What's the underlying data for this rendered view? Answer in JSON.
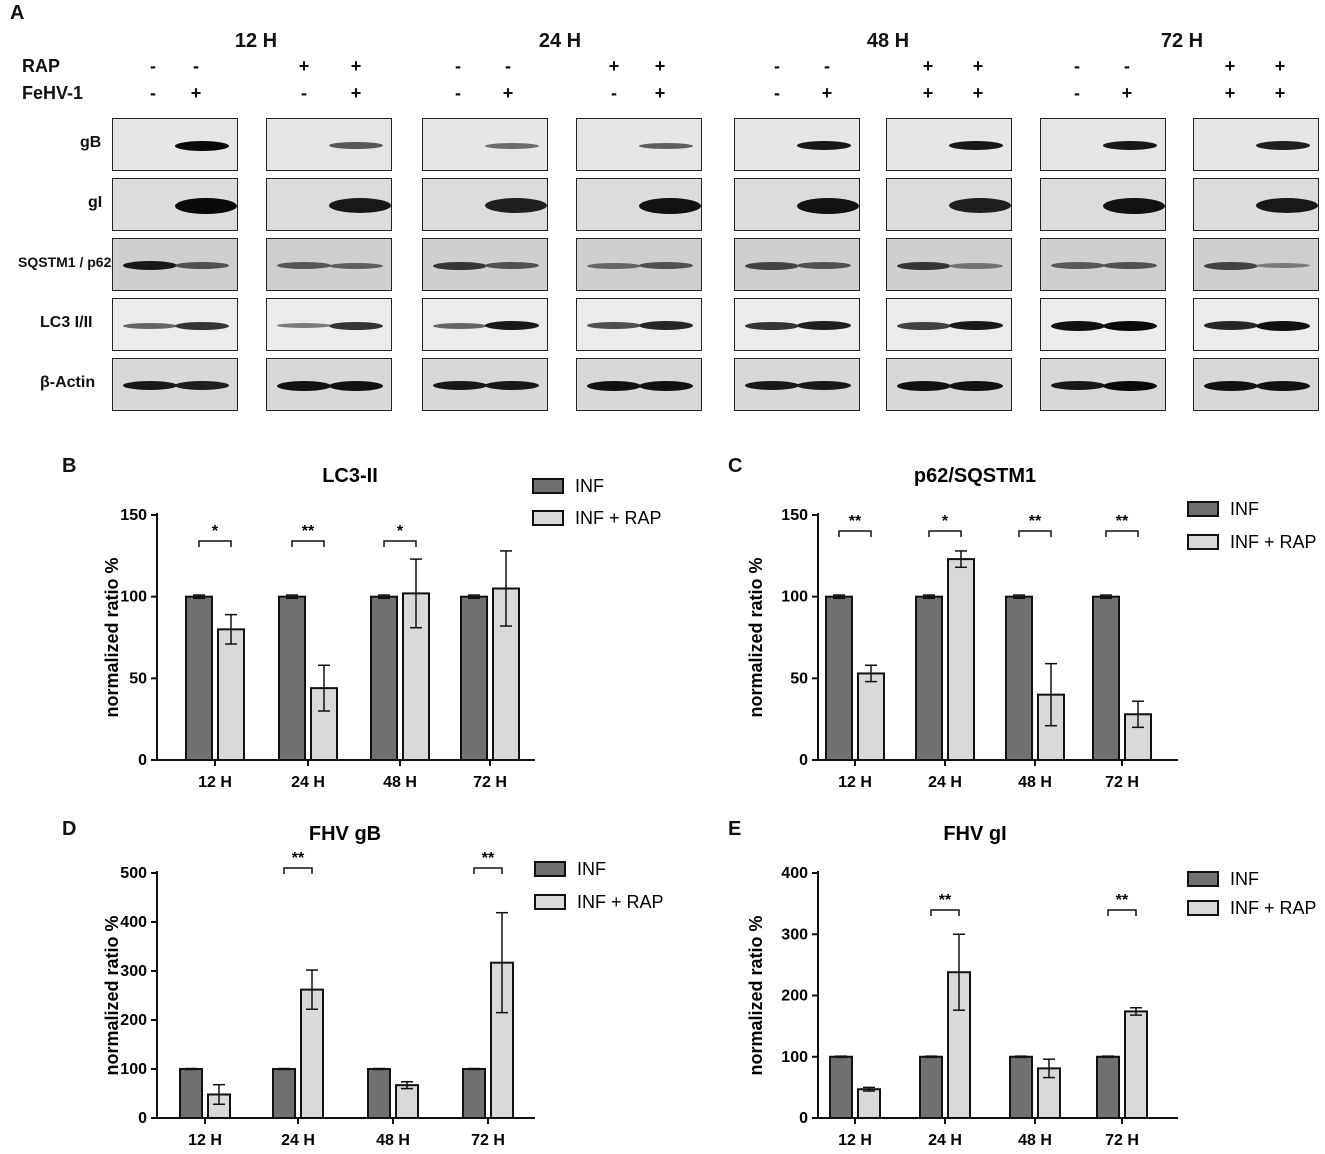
{
  "panel_a": {
    "letter": "A",
    "timepoints": [
      "12 H",
      "24 H",
      "48 H",
      "72 H"
    ],
    "row_labels": {
      "rap": "RAP",
      "fehv": "FeHV-1"
    },
    "rap_signs": [
      "-",
      "-",
      "+",
      "+",
      "-",
      "-",
      "+",
      "+",
      "-",
      "-",
      "+",
      "+",
      "-",
      "-",
      "+",
      "+"
    ],
    "fehv_signs": [
      "-",
      "+",
      "-",
      "+",
      "-",
      "+",
      "-",
      "+",
      "-",
      "+",
      "+",
      "+",
      "-",
      "+",
      "+",
      "+"
    ],
    "proteins": [
      "gB",
      "gI",
      "SQSTM1 / p62",
      "LC3 I/II",
      "β-Actin"
    ]
  },
  "chart_data": [
    {
      "letter": "B",
      "type": "bar",
      "title": "LC3-II",
      "ylabel": "normalized ratio %",
      "categories": [
        "12 H",
        "24 H",
        "48 H",
        "72 H"
      ],
      "ylim": [
        0,
        150
      ],
      "yticks": [
        0,
        50,
        100,
        150
      ],
      "series": [
        {
          "name": "INF",
          "color": "#707070",
          "values": [
            100,
            100,
            100,
            100
          ],
          "errors": [
            1,
            1,
            1,
            1
          ]
        },
        {
          "name": "INF + RAP",
          "color": "#d9d9d9",
          "values": [
            80,
            44,
            102,
            105
          ],
          "errors": [
            9,
            14,
            21,
            23
          ]
        }
      ],
      "significance": [
        "*",
        "**",
        "*",
        ""
      ],
      "legend_position": "top-right"
    },
    {
      "letter": "C",
      "type": "bar",
      "title": "p62/SQSTM1",
      "ylabel": "normalized ratio %",
      "categories": [
        "12 H",
        "24 H",
        "48 H",
        "72 H"
      ],
      "ylim": [
        0,
        150
      ],
      "yticks": [
        0,
        50,
        100,
        150
      ],
      "series": [
        {
          "name": "INF",
          "color": "#707070",
          "values": [
            100,
            100,
            100,
            100
          ],
          "errors": [
            1,
            1,
            1,
            1
          ]
        },
        {
          "name": "INF + RAP",
          "color": "#d9d9d9",
          "values": [
            53,
            123,
            40,
            28
          ],
          "errors": [
            5,
            5,
            19,
            8
          ]
        }
      ],
      "significance": [
        "**",
        "*",
        "**",
        "**"
      ],
      "legend_position": "top-right"
    },
    {
      "letter": "D",
      "type": "bar",
      "title": "FHV gB",
      "ylabel": "normalized ratio %",
      "categories": [
        "12 H",
        "24 H",
        "48 H",
        "72 H"
      ],
      "ylim": [
        0,
        500
      ],
      "yticks": [
        0,
        100,
        200,
        300,
        400,
        500
      ],
      "series": [
        {
          "name": "INF",
          "color": "#707070",
          "values": [
            100,
            100,
            100,
            100
          ],
          "errors": [
            1,
            1,
            1,
            1
          ]
        },
        {
          "name": "INF + RAP",
          "color": "#d9d9d9",
          "values": [
            48,
            262,
            67,
            317
          ],
          "errors": [
            20,
            40,
            7,
            102
          ]
        }
      ],
      "significance": [
        "",
        "**",
        "",
        "**"
      ],
      "legend_position": "top-right"
    },
    {
      "letter": "E",
      "type": "bar",
      "title": "FHV gI",
      "ylabel": "normalized ratio %",
      "categories": [
        "12 H",
        "24 H",
        "48 H",
        "72 H"
      ],
      "ylim": [
        0,
        400
      ],
      "yticks": [
        0,
        100,
        200,
        300,
        400
      ],
      "series": [
        {
          "name": "INF",
          "color": "#707070",
          "values": [
            100,
            100,
            100,
            100
          ],
          "errors": [
            1,
            1,
            1,
            1
          ]
        },
        {
          "name": "INF + RAP",
          "color": "#d9d9d9",
          "values": [
            47,
            238,
            81,
            174
          ],
          "errors": [
            3,
            62,
            15,
            6
          ]
        }
      ],
      "significance": [
        "",
        "**",
        "",
        "**"
      ],
      "legend_position": "top-right"
    }
  ]
}
